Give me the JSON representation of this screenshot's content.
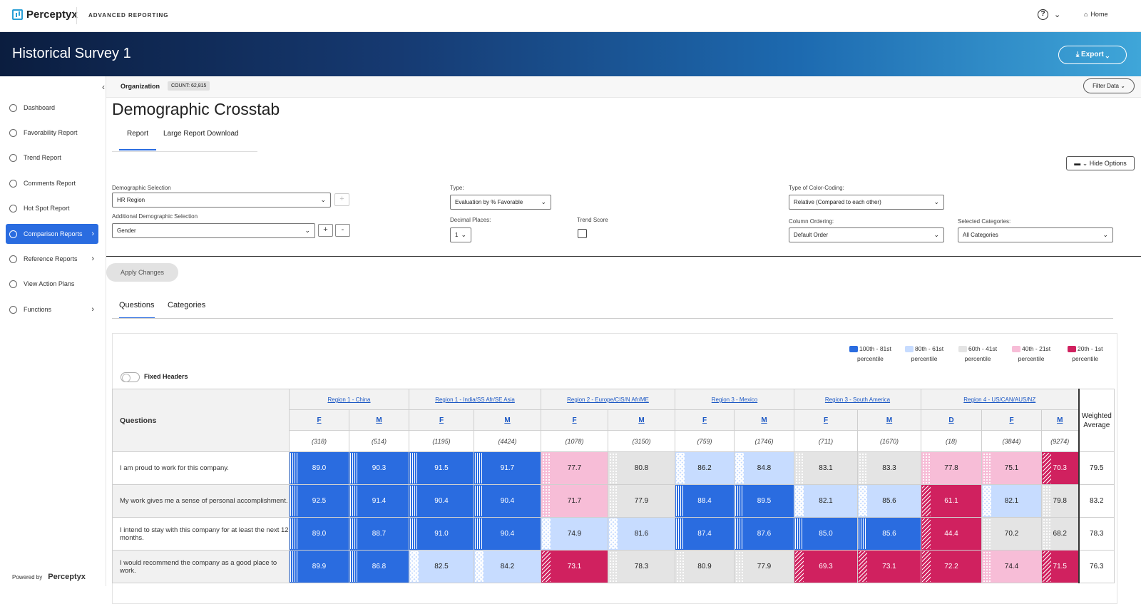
{
  "app": {
    "brand": "Perceptyx",
    "section": "ADVANCED REPORTING",
    "home": "Home",
    "help": "?"
  },
  "banner": {
    "title": "Historical Survey 1",
    "export": "Export"
  },
  "sidebar": {
    "items": [
      {
        "label": "Dashboard"
      },
      {
        "label": "Favorability Report"
      },
      {
        "label": "Trend Report"
      },
      {
        "label": "Comments Report"
      },
      {
        "label": "Hot Spot Report"
      },
      {
        "label": "Comparison Reports"
      },
      {
        "label": "Reference Reports"
      },
      {
        "label": "View Action Plans"
      },
      {
        "label": "Functions"
      }
    ],
    "powered_by": "Powered by",
    "powered_brand": "Perceptyx"
  },
  "org": {
    "label": "Organization",
    "count": "COUNT: 62,815",
    "filter": "Filter Data"
  },
  "page": {
    "title": "Demographic Crosstab",
    "tabs": [
      "Report",
      "Large Report Download"
    ],
    "hide_options": "Hide Options"
  },
  "form": {
    "demo_label": "Demographic Selection",
    "demo_value": "HR Region",
    "add_demo_label": "Additional Demographic Selection",
    "add_demo_value": "Gender",
    "type_label": "Type:",
    "type_value": "Evaluation by % Favorable",
    "decimal_label": "Decimal Places:",
    "decimal_value": "1",
    "trend_label": "Trend Score",
    "color_label": "Type of Color-Coding:",
    "color_value": "Relative (Compared to each other)",
    "order_label": "Column Ordering:",
    "order_value": "Default Order",
    "cats_label": "Selected Categories:",
    "cats_value": "All Categories",
    "apply": "Apply Changes",
    "plus": "+",
    "minus": "-"
  },
  "results_tabs": [
    "Questions",
    "Categories"
  ],
  "legend": [
    {
      "range": "100th - 81st",
      "sub": "percentile",
      "color": "#2a6ce0"
    },
    {
      "range": "80th - 61st",
      "sub": "percentile",
      "color": "#c7dcff"
    },
    {
      "range": "60th - 41st",
      "sub": "percentile",
      "color": "#e4e4e4"
    },
    {
      "range": "40th - 21st",
      "sub": "percentile",
      "color": "#f7bdd7"
    },
    {
      "range": "20th - 1st",
      "sub": "percentile",
      "color": "#d0215f"
    }
  ],
  "fixed_headers": "Fixed Headers",
  "table": {
    "questions_header": "Questions",
    "weighted_header": "Weighted Average",
    "regions": [
      {
        "name": "Region 1 - China",
        "span": 2
      },
      {
        "name": "Region 1 - India/SS Afr/SE Asia",
        "span": 2
      },
      {
        "name": "Region 2 - Europe/CIS/N Afr/ME",
        "span": 2
      },
      {
        "name": "Region 3 - Mexico",
        "span": 2
      },
      {
        "name": "Region 3 - South America",
        "span": 2
      },
      {
        "name": "Region 4 - US/CAN/AUS/NZ",
        "span": 3
      }
    ],
    "genders": [
      "F",
      "M",
      "F",
      "M",
      "F",
      "M",
      "F",
      "M",
      "F",
      "M",
      "D",
      "F",
      "M"
    ],
    "counts": [
      "(318)",
      "(514)",
      "(1195)",
      "(4424)",
      "(1078)",
      "(3150)",
      "(759)",
      "(1746)",
      "(711)",
      "(1670)",
      "(18)",
      "(3844)",
      "(9274)"
    ],
    "rows": [
      {
        "q": "I am proud to work for this company.",
        "vals": [
          "89.0",
          "90.3",
          "91.5",
          "91.7",
          "77.7",
          "80.8",
          "86.2",
          "84.8",
          "83.1",
          "83.3",
          "77.8",
          "75.1",
          "70.3"
        ],
        "pct": [
          1,
          1,
          1,
          1,
          4,
          3,
          2,
          2,
          3,
          3,
          4,
          4,
          5
        ],
        "avg": "79.5"
      },
      {
        "q": "My work gives me a sense of personal accomplishment.",
        "vals": [
          "92.5",
          "91.4",
          "90.4",
          "90.4",
          "71.7",
          "77.9",
          "88.4",
          "89.5",
          "82.1",
          "85.6",
          "61.1",
          "82.1",
          "79.8"
        ],
        "pct": [
          1,
          1,
          1,
          1,
          4,
          3,
          1,
          1,
          2,
          2,
          5,
          2,
          3
        ],
        "avg": "83.2"
      },
      {
        "q": "I intend to stay with this company for at least the next 12 months.",
        "vals": [
          "89.0",
          "88.7",
          "91.0",
          "90.4",
          "74.9",
          "81.6",
          "87.4",
          "87.6",
          "85.0",
          "85.6",
          "44.4",
          "70.2",
          "68.2"
        ],
        "pct": [
          1,
          1,
          1,
          1,
          2,
          2,
          1,
          1,
          1,
          1,
          5,
          3,
          3
        ],
        "avg": "78.3"
      },
      {
        "q": "I would recommend the company as a good place to work.",
        "vals": [
          "89.9",
          "86.8",
          "82.5",
          "84.2",
          "73.1",
          "78.3",
          "80.9",
          "77.9",
          "69.3",
          "73.1",
          "72.2",
          "74.4",
          "71.5"
        ],
        "pct": [
          1,
          1,
          2,
          2,
          5,
          3,
          3,
          3,
          5,
          5,
          5,
          4,
          5
        ],
        "avg": "76.3"
      }
    ]
  }
}
